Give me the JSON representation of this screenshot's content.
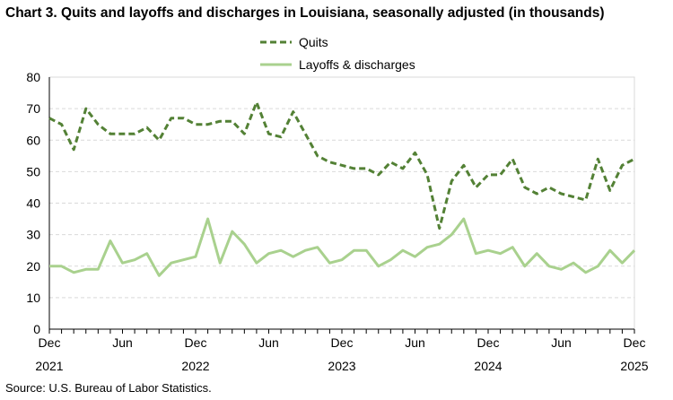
{
  "chart_data": {
    "type": "line",
    "title": "Chart 3. Quits and layoffs and discharges in Louisiana, seasonally adjusted (in thousands)",
    "source": "Source: U.S. Bureau of Labor Statistics.",
    "x_start": "Dec 2021",
    "x_end": "Dec 2025",
    "x_frequency": "monthly",
    "x_tick_labels": [
      {
        "month": "Dec",
        "year": "2021"
      },
      {
        "month": "Jun",
        "year": ""
      },
      {
        "month": "Dec",
        "year": "2022"
      },
      {
        "month": "Jun",
        "year": ""
      },
      {
        "month": "Dec",
        "year": "2023"
      },
      {
        "month": "Jun",
        "year": ""
      },
      {
        "month": "Dec",
        "year": "2024"
      },
      {
        "month": "Jun",
        "year": ""
      },
      {
        "month": "Dec",
        "year": "2025"
      }
    ],
    "ylim": [
      0,
      80
    ],
    "yticks": [
      0,
      10,
      20,
      30,
      40,
      50,
      60,
      70,
      80
    ],
    "grid": true,
    "legend_placement": "top-center",
    "series": [
      {
        "name": "Quits",
        "color": "#538135",
        "style": "dashed",
        "values": [
          67,
          65,
          57,
          70,
          65,
          62,
          62,
          62,
          64,
          60,
          67,
          67,
          65,
          65,
          66,
          66,
          62,
          72,
          62,
          61,
          69,
          62,
          55,
          53,
          52,
          51,
          51,
          49,
          53,
          51,
          56,
          49,
          32,
          47,
          52,
          45,
          49,
          49,
          54,
          45,
          43,
          45,
          43,
          42,
          41,
          54,
          44,
          52,
          54
        ]
      },
      {
        "name": "Layoffs & discharges",
        "color": "#a9d18e",
        "style": "solid",
        "values": [
          20,
          20,
          18,
          19,
          19,
          28,
          21,
          22,
          24,
          17,
          21,
          22,
          23,
          35,
          21,
          31,
          27,
          21,
          24,
          25,
          23,
          25,
          26,
          21,
          22,
          25,
          25,
          20,
          22,
          25,
          23,
          26,
          27,
          30,
          35,
          24,
          25,
          24,
          26,
          20,
          24,
          20,
          19,
          21,
          18,
          20,
          25,
          21,
          25
        ]
      }
    ]
  }
}
